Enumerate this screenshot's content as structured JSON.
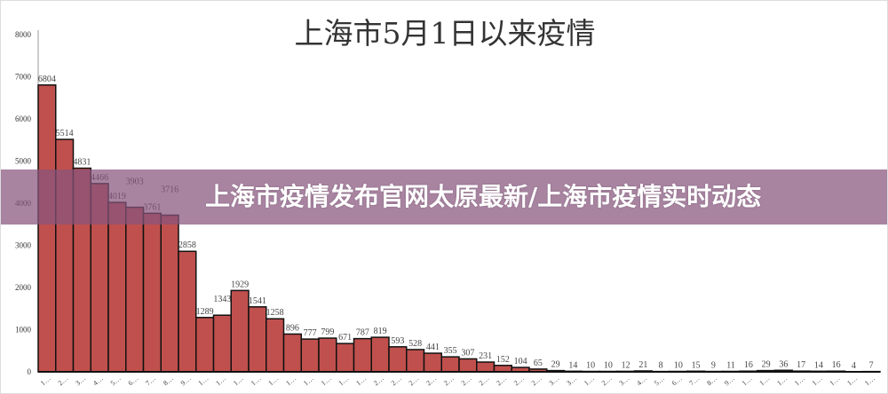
{
  "banner": {
    "text": "上海市疫情发布官网太原最新/上海市疫情实时动态"
  },
  "chart_data": {
    "type": "bar",
    "title": "上海市5月1日以来疫情",
    "xlabel": "",
    "ylabel": "",
    "ylim": [
      0,
      8000
    ],
    "yticks": [
      0,
      1000,
      2000,
      3000,
      4000,
      5000,
      6000,
      7000,
      8000
    ],
    "grid": false,
    "bar_color": "#c0504d",
    "categories": [
      "1…",
      "2…",
      "3…",
      "4…",
      "5…",
      "6…",
      "7…",
      "8…",
      "9…",
      "1…",
      "1…",
      "1…",
      "1…",
      "1…",
      "1…",
      "1…",
      "1…",
      "1…",
      "1…",
      "2…",
      "2…",
      "2…",
      "2…",
      "2…",
      "2…",
      "2…",
      "2…",
      "2…",
      "2…",
      "3…",
      "3…",
      "1…",
      "2…",
      "3…",
      "4…",
      "5…",
      "6…",
      "7…",
      "8…",
      "9…",
      "1…",
      "1…",
      "1…",
      "1…",
      "1…",
      "1…",
      "1…",
      "1…"
    ],
    "values": [
      6804,
      5514,
      4831,
      4466,
      4019,
      3903,
      3761,
      3716,
      2858,
      1289,
      1343,
      1929,
      1541,
      1258,
      896,
      777,
      799,
      671,
      787,
      819,
      593,
      528,
      441,
      355,
      307,
      231,
      152,
      104,
      65,
      29,
      14,
      10,
      10,
      12,
      21,
      8,
      10,
      15,
      9,
      11,
      16,
      29,
      36,
      17,
      14,
      16,
      4,
      7
    ]
  }
}
